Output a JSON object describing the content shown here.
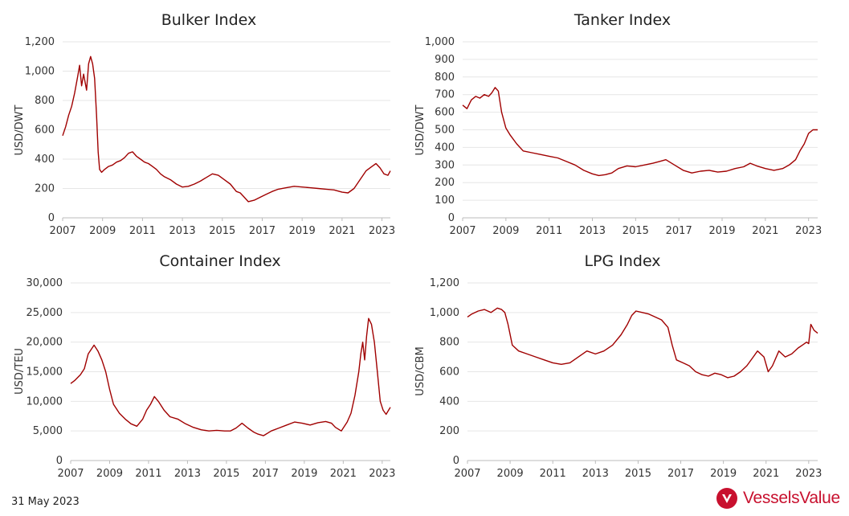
{
  "footer": {
    "date": "31 May 2023",
    "brand": "VesselsValue"
  },
  "colors": {
    "line": "#a00000",
    "grid": "#e6e6e6",
    "brand": "#c8102e"
  },
  "chart_data": [
    {
      "type": "line",
      "title": "Bulker Index",
      "ylabel": "USD/DWT",
      "xlim": [
        2007,
        2023.42
      ],
      "ylim": [
        0,
        1200
      ],
      "yticks": [
        0,
        200,
        400,
        600,
        800,
        1000,
        1200
      ],
      "ytick_labels": [
        "0",
        "200",
        "400",
        "600",
        "800",
        "1,000",
        "1,200"
      ],
      "xticks": [
        2007,
        2009,
        2011,
        2013,
        2015,
        2017,
        2019,
        2021,
        2023
      ],
      "grid": true,
      "series": [
        {
          "x": [
            2007,
            2007.15,
            2007.3,
            2007.45,
            2007.6,
            2007.75,
            2007.85,
            2007.95,
            2008.05,
            2008.2,
            2008.3,
            2008.4,
            2008.5,
            2008.6,
            2008.7,
            2008.78,
            2008.85,
            2008.95,
            2009.1,
            2009.3,
            2009.5,
            2009.7,
            2009.9,
            2010.1,
            2010.3,
            2010.5,
            2010.7,
            2010.9,
            2011.1,
            2011.3,
            2011.5,
            2011.7,
            2011.9,
            2012.1,
            2012.4,
            2012.7,
            2013,
            2013.3,
            2013.6,
            2013.9,
            2014.2,
            2014.5,
            2014.8,
            2015.1,
            2015.4,
            2015.7,
            2015.9,
            2016.1,
            2016.3,
            2016.6,
            2016.9,
            2017.2,
            2017.5,
            2017.8,
            2018.2,
            2018.6,
            2019,
            2019.4,
            2019.8,
            2020.2,
            2020.6,
            2021,
            2021.3,
            2021.6,
            2021.9,
            2022.2,
            2022.5,
            2022.7,
            2022.9,
            2023.1,
            2023.3,
            2023.42
          ],
          "y": [
            560,
            620,
            700,
            760,
            850,
            960,
            1040,
            900,
            980,
            870,
            1050,
            1100,
            1050,
            950,
            700,
            450,
            330,
            310,
            330,
            350,
            360,
            380,
            390,
            410,
            440,
            450,
            420,
            400,
            380,
            370,
            350,
            330,
            300,
            280,
            260,
            230,
            210,
            215,
            230,
            250,
            275,
            300,
            290,
            260,
            230,
            180,
            170,
            140,
            110,
            120,
            140,
            160,
            180,
            195,
            205,
            215,
            210,
            205,
            200,
            195,
            190,
            175,
            170,
            200,
            260,
            320,
            350,
            370,
            340,
            300,
            290,
            320
          ]
        }
      ]
    },
    {
      "type": "line",
      "title": "Tanker Index",
      "ylabel": "USD/DWT",
      "xlim": [
        2007,
        2023.42
      ],
      "ylim": [
        0,
        1000
      ],
      "yticks": [
        0,
        100,
        200,
        300,
        400,
        500,
        600,
        700,
        800,
        900,
        1000
      ],
      "ytick_labels": [
        "0",
        "100",
        "200",
        "300",
        "400",
        "500",
        "600",
        "700",
        "800",
        "900",
        "1,000"
      ],
      "xticks": [
        2007,
        2009,
        2011,
        2013,
        2015,
        2017,
        2019,
        2021,
        2023
      ],
      "grid": true,
      "series": [
        {
          "x": [
            2007,
            2007.2,
            2007.4,
            2007.6,
            2007.8,
            2008,
            2008.2,
            2008.35,
            2008.5,
            2008.65,
            2008.8,
            2009,
            2009.2,
            2009.5,
            2009.8,
            2010.2,
            2010.6,
            2011,
            2011.4,
            2011.8,
            2012.2,
            2012.6,
            2013,
            2013.3,
            2013.6,
            2013.9,
            2014.2,
            2014.6,
            2015,
            2015.4,
            2015.8,
            2016.1,
            2016.4,
            2016.8,
            2017.2,
            2017.6,
            2018,
            2018.4,
            2018.8,
            2019.2,
            2019.6,
            2020,
            2020.3,
            2020.6,
            2021,
            2021.4,
            2021.8,
            2022.1,
            2022.4,
            2022.6,
            2022.8,
            2023,
            2023.2,
            2023.42
          ],
          "y": [
            640,
            620,
            670,
            690,
            680,
            700,
            690,
            710,
            740,
            720,
            600,
            510,
            470,
            420,
            380,
            370,
            360,
            350,
            340,
            320,
            300,
            270,
            250,
            240,
            245,
            255,
            280,
            295,
            290,
            300,
            310,
            320,
            330,
            300,
            270,
            255,
            265,
            270,
            260,
            265,
            280,
            290,
            310,
            295,
            280,
            270,
            280,
            300,
            330,
            380,
            420,
            480,
            500,
            500
          ]
        }
      ]
    },
    {
      "type": "line",
      "title": "Container Index",
      "ylabel": "USD/TEU",
      "xlim": [
        2007,
        2023.42
      ],
      "ylim": [
        0,
        30000
      ],
      "yticks": [
        0,
        5000,
        10000,
        15000,
        20000,
        25000,
        30000
      ],
      "ytick_labels": [
        "0",
        "5,000",
        "10,000",
        "15,000",
        "20,000",
        "25,000",
        "30,000"
      ],
      "xticks": [
        2007,
        2009,
        2011,
        2013,
        2015,
        2017,
        2019,
        2021,
        2023
      ],
      "grid": true,
      "series": [
        {
          "x": [
            2007,
            2007.2,
            2007.5,
            2007.7,
            2007.9,
            2008.1,
            2008.2,
            2008.4,
            2008.6,
            2008.8,
            2009,
            2009.2,
            2009.5,
            2009.8,
            2010.1,
            2010.4,
            2010.7,
            2010.9,
            2011.1,
            2011.3,
            2011.5,
            2011.8,
            2012.1,
            2012.5,
            2012.9,
            2013.3,
            2013.7,
            2014.1,
            2014.5,
            2014.9,
            2015.2,
            2015.5,
            2015.8,
            2016.1,
            2016.4,
            2016.6,
            2016.9,
            2017.3,
            2017.7,
            2018.1,
            2018.5,
            2018.9,
            2019.3,
            2019.7,
            2020.1,
            2020.4,
            2020.6,
            2020.9,
            2021.2,
            2021.4,
            2021.6,
            2021.8,
            2021.9,
            2022,
            2022.1,
            2022.2,
            2022.3,
            2022.45,
            2022.6,
            2022.75,
            2022.9,
            2023.05,
            2023.2,
            2023.42
          ],
          "y": [
            13000,
            13500,
            14500,
            15500,
            18000,
            19000,
            19500,
            18500,
            17000,
            15000,
            12000,
            9500,
            8000,
            7000,
            6200,
            5800,
            7000,
            8500,
            9500,
            10800,
            10000,
            8500,
            7400,
            7000,
            6200,
            5600,
            5200,
            5000,
            5100,
            5000,
            5000,
            5500,
            6300,
            5500,
            4800,
            4500,
            4200,
            5000,
            5500,
            6000,
            6500,
            6300,
            6000,
            6400,
            6600,
            6300,
            5600,
            5000,
            6500,
            8000,
            11000,
            15000,
            18000,
            20000,
            17000,
            21000,
            24000,
            23000,
            20000,
            15000,
            10000,
            8500,
            7800,
            9000
          ]
        }
      ]
    },
    {
      "type": "line",
      "title": "LPG Index",
      "ylabel": "USD/CBM",
      "xlim": [
        2007,
        2023.42
      ],
      "ylim": [
        0,
        1200
      ],
      "yticks": [
        0,
        200,
        400,
        600,
        800,
        1000,
        1200
      ],
      "ytick_labels": [
        "0",
        "200",
        "400",
        "600",
        "800",
        "1,000",
        "1,200"
      ],
      "xticks": [
        2007,
        2009,
        2011,
        2013,
        2015,
        2017,
        2019,
        2021,
        2023
      ],
      "grid": true,
      "series": [
        {
          "x": [
            2007,
            2007.2,
            2007.5,
            2007.8,
            2008.1,
            2008.4,
            2008.6,
            2008.75,
            2008.9,
            2009.1,
            2009.4,
            2009.8,
            2010.2,
            2010.6,
            2011,
            2011.4,
            2011.8,
            2012.2,
            2012.6,
            2013,
            2013.4,
            2013.8,
            2014.2,
            2014.5,
            2014.7,
            2014.9,
            2015.2,
            2015.5,
            2015.8,
            2016.1,
            2016.4,
            2016.6,
            2016.8,
            2017.1,
            2017.4,
            2017.7,
            2018,
            2018.3,
            2018.6,
            2018.9,
            2019.2,
            2019.5,
            2019.8,
            2020.1,
            2020.4,
            2020.6,
            2020.9,
            2021.1,
            2021.3,
            2021.6,
            2021.9,
            2022.2,
            2022.5,
            2022.7,
            2022.9,
            2023,
            2023.1,
            2023.25,
            2023.42
          ],
          "y": [
            970,
            990,
            1010,
            1020,
            1000,
            1030,
            1020,
            1000,
            920,
            780,
            740,
            720,
            700,
            680,
            660,
            650,
            660,
            700,
            740,
            720,
            740,
            780,
            850,
            920,
            980,
            1010,
            1000,
            990,
            970,
            950,
            900,
            780,
            680,
            660,
            640,
            600,
            580,
            570,
            590,
            580,
            560,
            570,
            600,
            640,
            700,
            740,
            700,
            600,
            640,
            740,
            700,
            720,
            760,
            780,
            800,
            790,
            920,
            880,
            860
          ]
        }
      ]
    }
  ]
}
